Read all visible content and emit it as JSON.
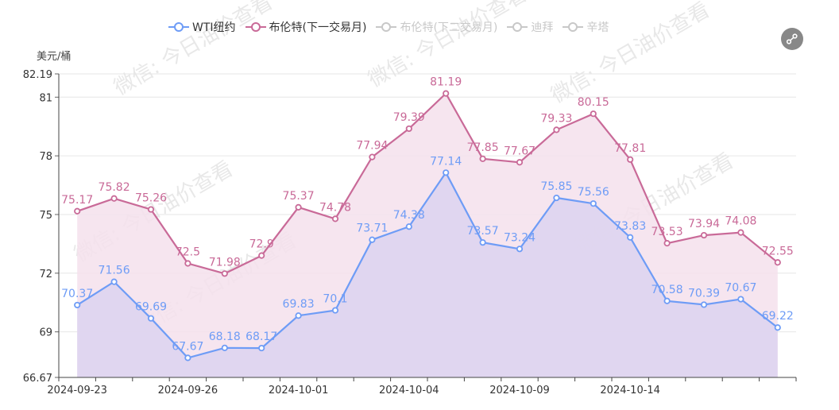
{
  "chart_data": {
    "type": "area",
    "ylabel": "美元/桶",
    "ylim": [
      66.67,
      82.19
    ],
    "yticks": [
      "66.67",
      "69",
      "72",
      "75",
      "78",
      "81",
      "82.19"
    ],
    "xtick_labels": [
      "2024-09-23",
      "2024-09-26",
      "2024-10-01",
      "2024-10-04",
      "2024-10-09",
      "2024-10-14"
    ],
    "x": [
      "2024-09-23",
      "2024-09-24",
      "2024-09-25",
      "2024-09-26",
      "2024-09-27",
      "2024-09-30",
      "2024-10-01",
      "2024-10-02",
      "2024-10-03",
      "2024-10-04",
      "2024-10-07",
      "2024-10-08",
      "2024-10-09",
      "2024-10-10",
      "2024-10-11",
      "2024-10-14",
      "2024-10-15",
      "2024-10-16",
      "2024-10-17",
      "2024-10-18"
    ],
    "series": [
      {
        "name": "WTI纽约",
        "color": "#6e9cf6",
        "fill": "#dcd4f0",
        "visible": true,
        "values": [
          70.37,
          71.56,
          69.69,
          67.67,
          68.18,
          68.17,
          69.83,
          70.1,
          73.71,
          74.38,
          77.14,
          73.57,
          73.24,
          75.85,
          75.56,
          73.83,
          70.58,
          70.39,
          70.67,
          69.22
        ]
      },
      {
        "name": "布伦特(下一交易月)",
        "color": "#c96a98",
        "fill": "#f5e1ec",
        "visible": true,
        "values": [
          75.17,
          75.82,
          75.26,
          72.5,
          71.98,
          72.9,
          75.37,
          74.78,
          77.94,
          79.39,
          81.19,
          77.85,
          77.67,
          79.33,
          80.15,
          77.81,
          73.53,
          73.94,
          74.08,
          72.55
        ]
      },
      {
        "name": "布伦特(下二交易月)",
        "color": "#c8c8c8",
        "visible": false
      },
      {
        "name": "迪拜",
        "color": "#c8c8c8",
        "visible": false
      },
      {
        "name": "辛塔",
        "color": "#c8c8c8",
        "visible": false
      }
    ],
    "grid": true,
    "legend_position": "top-center"
  },
  "share_icon": "share-icon"
}
